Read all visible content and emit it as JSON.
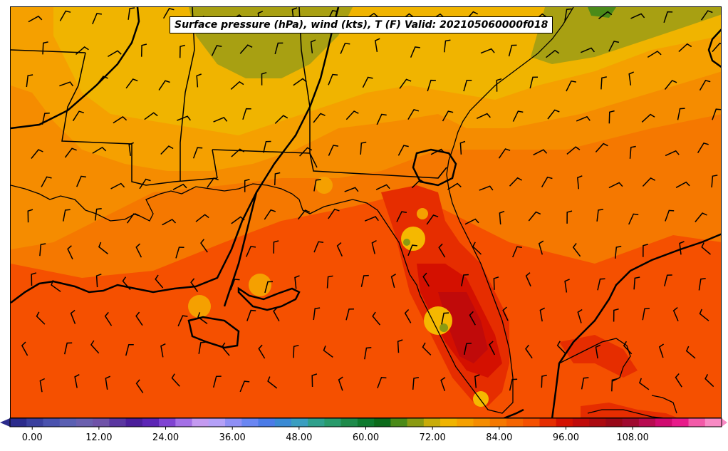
{
  "title": "Surface pressure (hPa), wind (kts), T (F) Valid: 202105060000f018",
  "colorbar": {
    "ticks": [
      "0.00",
      "12.00",
      "24.00",
      "36.00",
      "48.00",
      "60.00",
      "72.00",
      "84.00",
      "96.00",
      "108.00"
    ],
    "range": [
      -4,
      124
    ],
    "colors": [
      "#2b2b8c",
      "#3a3f9e",
      "#4a52ae",
      "#5a5fb2",
      "#6a5fae",
      "#6f52a8",
      "#5a36a0",
      "#4b1e9a",
      "#5c25b5",
      "#7f43d2",
      "#a470e6",
      "#c49af0",
      "#b4a0f7",
      "#8f8ff5",
      "#6a86f2",
      "#4b7be7",
      "#3a8ad4",
      "#3a9ec0",
      "#2fa08c",
      "#289a6a",
      "#1e8a4a",
      "#0e7a2e",
      "#0c6a1a",
      "#4a8a18",
      "#8a9a12",
      "#c8ac0a",
      "#f0b400",
      "#f5a000",
      "#f58c00",
      "#f57800",
      "#f56400",
      "#f55000",
      "#e62d00",
      "#d41000",
      "#c00a0a",
      "#ac0a10",
      "#980818",
      "#a00a30",
      "#b80a50",
      "#d00a70",
      "#e81a8a",
      "#f25aa8",
      "#f88ac4"
    ]
  },
  "map": {
    "temperature_shading": "F",
    "features": [
      "state-borders",
      "coastlines",
      "isobars",
      "wind-barbs"
    ]
  }
}
